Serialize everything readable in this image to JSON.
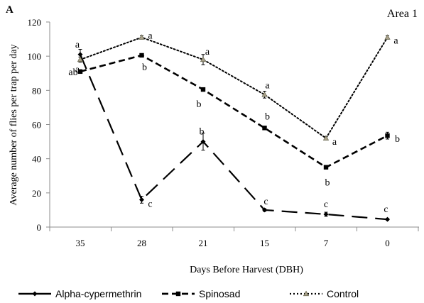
{
  "panel_label": "A",
  "chart_data": {
    "type": "line",
    "title": "Area 1",
    "xlabel": "Days Before Harvest (DBH)",
    "ylabel": "Average number of flies per trap per day",
    "categories": [
      "35",
      "28",
      "21",
      "15",
      "7",
      "0"
    ],
    "ylim": [
      0,
      120
    ],
    "yticks": [
      0,
      20,
      40,
      60,
      80,
      100,
      120
    ],
    "grid": false,
    "legend_position": "bottom",
    "series": [
      {
        "name": "Alpha-cypermethrin",
        "color": "#000000",
        "line_style": "long-dash",
        "marker": "diamond",
        "values": [
          101,
          16,
          50,
          10,
          7.5,
          4.5
        ],
        "errors": [
          3,
          2,
          5,
          0.8,
          1.2,
          0.5
        ],
        "letters": [
          "a",
          "c",
          "b",
          "c",
          "c",
          "c"
        ]
      },
      {
        "name": "Spinosad",
        "color": "#000000",
        "line_style": "dash",
        "marker": "square",
        "values": [
          91,
          100.5,
          80.5,
          58,
          35,
          53.5
        ],
        "errors": [
          1,
          1,
          1,
          1,
          1,
          2
        ],
        "letters": [
          "ab",
          "b",
          "b",
          "b",
          "b",
          "b"
        ]
      },
      {
        "name": "Control",
        "color": "#000000",
        "line_style": "dot",
        "marker": "triangle",
        "values": [
          98,
          111,
          98,
          77.5,
          52,
          111
        ],
        "errors": [
          1.5,
          1,
          3,
          2,
          1,
          1
        ],
        "letters": [
          "a",
          "a",
          "a",
          "a",
          "a",
          "a"
        ]
      }
    ]
  }
}
